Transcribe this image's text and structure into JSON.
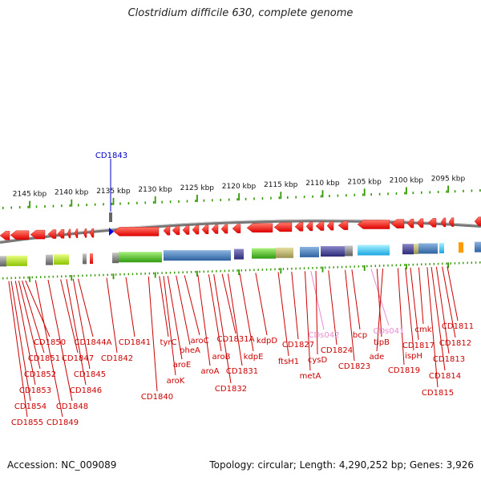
{
  "title": "Clostridium difficile 630, complete genome",
  "accession": "Accession: NC_009089",
  "summary": "Topology: circular; Length: 4,290,252 bp; Genes: 3,926",
  "colors": {
    "gene_label": "#cc0000",
    "ncrna_label": "#e98ad0",
    "marker": "#0000cc",
    "gene_arrow": "#ff0000",
    "backbone": "#999999",
    "tick": "#339900"
  },
  "marker": {
    "label": "CD1843",
    "position_kbp": 2134.4
  },
  "ruler": {
    "unit": "kbp",
    "ticks_kbp": [
      2145,
      2140,
      2135,
      2130,
      2125,
      2120,
      2115,
      2110,
      2105,
      2100,
      2095
    ],
    "tick_labels": [
      "2145 kbp",
      "2140 kbp",
      "2135 kbp",
      "2130 kbp",
      "2125 kbp",
      "2120 kbp",
      "2115 kbp",
      "2110 kbp",
      "2105 kbp",
      "2100 kbp",
      "2095 kbp"
    ]
  },
  "genes": [
    {
      "name": "CD1855",
      "kind": "gene",
      "at": 2147.5
    },
    {
      "name": "CD1854",
      "kind": "gene",
      "at": 2147.2
    },
    {
      "name": "CD1853",
      "kind": "gene",
      "at": 2146.7
    },
    {
      "name": "CD1852",
      "kind": "gene",
      "at": 2146.3
    },
    {
      "name": "CD1851",
      "kind": "gene",
      "at": 2145.9
    },
    {
      "name": "CD1850",
      "kind": "gene",
      "at": 2145.5
    },
    {
      "name": "CD1849",
      "kind": "gene",
      "at": 2144.3
    },
    {
      "name": "CD1848",
      "kind": "gene",
      "at": 2142.8
    },
    {
      "name": "CD1847",
      "kind": "gene",
      "at": 2141.3
    },
    {
      "name": "CD1846",
      "kind": "gene",
      "at": 2140.6
    },
    {
      "name": "CD1845",
      "kind": "gene",
      "at": 2139.8
    },
    {
      "name": "CD1844A",
      "kind": "gene",
      "at": 2139.2
    },
    {
      "name": "CD1842",
      "kind": "gene",
      "at": 2135.8
    },
    {
      "name": "CD1841",
      "kind": "gene",
      "at": 2133.5
    },
    {
      "name": "CD1840",
      "kind": "gene",
      "at": 2130.8
    },
    {
      "name": "tyrC",
      "kind": "gene",
      "at": 2129.5
    },
    {
      "name": "aroK",
      "kind": "gene",
      "at": 2129.0
    },
    {
      "name": "aroE",
      "kind": "gene",
      "at": 2128.5
    },
    {
      "name": "pheA",
      "kind": "gene",
      "at": 2127.5
    },
    {
      "name": "aroC",
      "kind": "gene",
      "at": 2126.5
    },
    {
      "name": "aroA",
      "kind": "gene",
      "at": 2124.9
    },
    {
      "name": "aroB",
      "kind": "gene",
      "at": 2123.6
    },
    {
      "name": "CD1832",
      "kind": "gene",
      "at": 2123.0
    },
    {
      "name": "CD1831A",
      "kind": "gene",
      "at": 2122.0
    },
    {
      "name": "CD1831",
      "kind": "gene",
      "at": 2121.3
    },
    {
      "name": "kdpE",
      "kind": "gene",
      "at": 2119.9
    },
    {
      "name": "kdpD",
      "kind": "gene",
      "at": 2118.0
    },
    {
      "name": "ftsH1",
      "kind": "gene",
      "at": 2115.3
    },
    {
      "name": "CD1827",
      "kind": "gene",
      "at": 2113.7
    },
    {
      "name": "metA",
      "kind": "gene",
      "at": 2112.1
    },
    {
      "name": "CDs042",
      "kind": "ncRNA",
      "at": 2111.4
    },
    {
      "name": "cysD",
      "kind": "gene",
      "at": 2110.8
    },
    {
      "name": "CD1824",
      "kind": "gene",
      "at": 2109.3
    },
    {
      "name": "CD1823",
      "kind": "gene",
      "at": 2107.3
    },
    {
      "name": "bcp",
      "kind": "gene",
      "at": 2106.5
    },
    {
      "name": "CDs041",
      "kind": "ncRNA",
      "at": 2104.2
    },
    {
      "name": "tlpB",
      "kind": "gene",
      "at": 2103.5
    },
    {
      "name": "ade",
      "kind": "gene",
      "at": 2102.8
    },
    {
      "name": "CD1819",
      "kind": "gene",
      "at": 2101.0
    },
    {
      "name": "ispH",
      "kind": "gene",
      "at": 2100.1
    },
    {
      "name": "CD1817",
      "kind": "gene",
      "at": 2099.5
    },
    {
      "name": "cmk",
      "kind": "gene",
      "at": 2098.5
    },
    {
      "name": "CD1815",
      "kind": "gene",
      "at": 2097.5
    },
    {
      "name": "CD1814",
      "kind": "gene",
      "at": 2097.0
    },
    {
      "name": "CD1813",
      "kind": "gene",
      "at": 2096.4
    },
    {
      "name": "CD1812",
      "kind": "gene",
      "at": 2095.7
    },
    {
      "name": "CD1811",
      "kind": "gene",
      "at": 2095.1
    }
  ]
}
